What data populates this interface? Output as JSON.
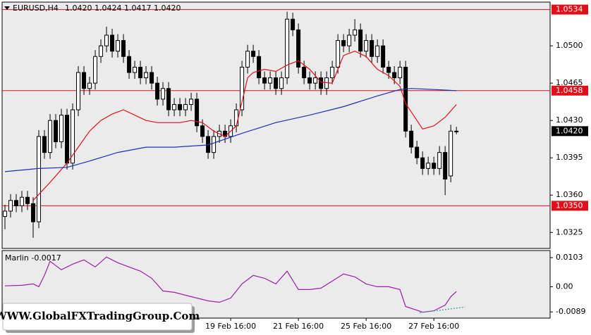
{
  "chart_data": {
    "type": "candlestick",
    "title": "EURUSD,H4",
    "header_ohlc": [
      {
        "value": 1.042,
        "label": "1.0420"
      },
      1.0424,
      1.0417,
      {
        "value": 1.042,
        "label": "1.0420"
      }
    ],
    "open": [
      1.034,
      1.0345,
      1.0355,
      1.035,
      1.0358,
      1.0352,
      1.0335,
      1.0415,
      1.04,
      1.043,
      1.041,
      1.0435,
      1.039,
      1.044,
      1.0475,
      1.046,
      1.0465,
      1.049,
      1.05,
      1.051,
      1.0495,
      1.0505,
      1.049,
      1.0475,
      1.048,
      1.047,
      1.0475,
      1.0465,
      1.045,
      1.046,
      1.044,
      1.0445,
      1.044,
      1.0445,
      1.045,
      1.0425,
      1.0415,
      1.04,
      1.0415,
      1.042,
      1.0415,
      1.0425,
      1.044,
      1.048,
      1.0495,
      1.049,
      1.047,
      1.0465,
      1.047,
      1.046,
      1.047,
      1.0525,
      1.0515,
      1.048,
      1.047,
      1.0465,
      1.047,
      1.046,
      1.047,
      1.048,
      1.0505,
      1.05,
      1.051,
      1.0515,
      1.0495,
      1.0505,
      1.049,
      1.05,
      1.048,
      1.0475,
      1.047,
      1.048,
      1.042,
      1.0405,
      1.0395,
      1.0385,
      1.039,
      1.0385,
      1.04,
      1.0378,
      1.042
    ],
    "high": [
      1.0351,
      1.0361,
      1.0361,
      1.0364,
      1.0364,
      1.0358,
      1.0421,
      1.0421,
      1.0436,
      1.0436,
      1.0441,
      1.0441,
      1.0446,
      1.0481,
      1.0481,
      1.0471,
      1.0496,
      1.0506,
      1.0518,
      1.0516,
      1.0511,
      1.0511,
      1.0496,
      1.0486,
      1.0486,
      1.0481,
      1.0481,
      1.0471,
      1.0466,
      1.0466,
      1.0451,
      1.0451,
      1.0451,
      1.0456,
      1.0456,
      1.0431,
      1.0421,
      1.0421,
      1.0426,
      1.0426,
      1.0431,
      1.0446,
      1.0486,
      1.0501,
      1.0501,
      1.0496,
      1.0476,
      1.0476,
      1.0476,
      1.0476,
      1.0532,
      1.0531,
      1.0521,
      1.0486,
      1.0476,
      1.0476,
      1.0476,
      1.0476,
      1.0486,
      1.0511,
      1.0511,
      1.0516,
      1.0525,
      1.0521,
      1.0511,
      1.0511,
      1.0506,
      1.0506,
      1.0486,
      1.0481,
      1.0486,
      1.0486,
      1.0426,
      1.0411,
      1.0401,
      1.0396,
      1.0396,
      1.0406,
      1.0406,
      1.0426,
      1.0424
    ],
    "low": [
      1.0328,
      1.0339,
      1.0344,
      1.0344,
      1.0346,
      1.032,
      1.0329,
      1.0394,
      1.0394,
      1.0404,
      1.0404,
      1.0384,
      1.0384,
      1.0434,
      1.0454,
      1.0454,
      1.0459,
      1.0484,
      1.0494,
      1.0489,
      1.0489,
      1.0484,
      1.0469,
      1.0469,
      1.0464,
      1.0464,
      1.0459,
      1.0444,
      1.0444,
      1.0434,
      1.0434,
      1.0434,
      1.0434,
      1.0439,
      1.0419,
      1.0409,
      1.0394,
      1.0394,
      1.0409,
      1.0409,
      1.0409,
      1.0419,
      1.0434,
      1.0474,
      1.0484,
      1.0464,
      1.0459,
      1.0459,
      1.0454,
      1.0454,
      1.0464,
      1.0509,
      1.0474,
      1.0464,
      1.0459,
      1.0459,
      1.0454,
      1.0454,
      1.0464,
      1.0474,
      1.0494,
      1.0494,
      1.0504,
      1.0489,
      1.0489,
      1.0484,
      1.0484,
      1.0474,
      1.0469,
      1.0464,
      1.0464,
      1.0414,
      1.0399,
      1.0389,
      1.0379,
      1.0379,
      1.0379,
      1.0379,
      1.036,
      1.0372,
      1.0417
    ],
    "close": [
      1.0345,
      1.0355,
      1.035,
      1.0358,
      1.0352,
      1.0335,
      1.0415,
      1.04,
      1.043,
      1.041,
      1.0435,
      1.039,
      1.044,
      1.0475,
      1.046,
      1.0465,
      1.049,
      1.05,
      1.051,
      1.0495,
      1.0505,
      1.049,
      1.0475,
      1.048,
      1.047,
      1.0475,
      1.0465,
      1.045,
      1.046,
      1.044,
      1.0445,
      1.044,
      1.0445,
      1.045,
      1.0425,
      1.0415,
      1.04,
      1.0415,
      1.042,
      1.0415,
      1.0425,
      1.044,
      1.048,
      1.0495,
      1.049,
      1.047,
      1.0465,
      1.047,
      1.046,
      1.047,
      1.0525,
      1.0515,
      1.048,
      1.047,
      1.0465,
      1.047,
      1.046,
      1.047,
      1.048,
      1.0505,
      1.05,
      1.051,
      1.0515,
      1.0495,
      1.0505,
      1.049,
      1.05,
      1.048,
      1.0475,
      1.047,
      1.048,
      1.042,
      1.0405,
      1.0395,
      1.0385,
      1.039,
      1.0385,
      1.04,
      1.0375,
      1.042,
      1.042
    ],
    "series": [
      {
        "color": "#e0101a",
        "x": [
          5,
          8,
          11,
          13,
          15,
          17,
          19,
          21,
          23,
          25,
          27,
          29,
          31,
          33,
          35,
          37,
          39,
          41,
          43,
          44,
          46,
          48,
          50,
          52,
          54,
          56,
          58,
          60,
          62,
          64,
          66,
          68,
          70,
          71,
          73,
          74,
          76,
          78,
          80
        ],
        "values": [
          1.0355,
          1.0372,
          1.039,
          1.0405,
          1.042,
          1.043,
          1.0436,
          1.044,
          1.0435,
          1.043,
          1.0428,
          1.0428,
          1.0428,
          1.043,
          1.0428,
          1.042,
          1.0415,
          1.0425,
          1.047,
          1.0475,
          1.0478,
          1.0476,
          1.0482,
          1.0486,
          1.0478,
          1.0466,
          1.0465,
          1.0491,
          1.0495,
          1.049,
          1.0478,
          1.0472,
          1.0462,
          1.0446,
          1.043,
          1.0422,
          1.0425,
          1.0433,
          1.0445
        ]
      },
      {
        "color": "#1c2fb4",
        "x": [
          0,
          6,
          11,
          15,
          20,
          25,
          30,
          36,
          42,
          48,
          54,
          60,
          66,
          70,
          72,
          76,
          80
        ],
        "values": [
          1.0382,
          1.0385,
          1.0386,
          1.0392,
          1.04,
          1.0405,
          1.0405,
          1.0407,
          1.0418,
          1.0428,
          1.0435,
          1.0443,
          1.0453,
          1.0459,
          1.046,
          1.0459,
          1.0458
        ]
      }
    ],
    "levels": [
      1.0534,
      1.0458,
      {
        "value": 1.035,
        "label": "1.0350"
      }
    ],
    "level_color": "#e0101a",
    "last_price": {
      "value": 1.042,
      "label": "1.0420"
    },
    "xlim": [
      -0.5,
      96.6
    ],
    "xticks": [
      {
        "value": 40,
        "label": "19 Feb 16:00"
      },
      {
        "value": 52,
        "label": "21 Feb 16:00"
      },
      {
        "value": 64,
        "label": "25 Feb 16:00"
      },
      {
        "value": 76,
        "label": "27 Feb 16:00"
      }
    ],
    "ylim": [
      1.031,
      1.0541
    ],
    "yticks": [
      {
        "value": 1.05,
        "label": "1.0500"
      },
      1.0465,
      {
        "value": 1.043,
        "label": "1.0430"
      },
      1.0395,
      {
        "value": 1.036,
        "label": "1.0360"
      },
      1.0325
    ],
    "indicator": {
      "name": "Marlin",
      "value": -0.0017,
      "color": "#9b1fa8",
      "x": [
        0,
        3,
        5,
        6,
        7,
        8,
        10,
        12,
        14,
        16,
        18,
        20,
        22,
        24,
        26,
        28,
        30,
        32,
        34,
        36,
        38,
        40,
        42,
        44,
        46,
        48,
        50,
        52,
        54,
        56,
        58,
        60,
        62,
        64,
        66,
        68,
        70,
        71,
        73,
        74,
        76,
        77,
        78,
        79,
        80
      ],
      "values": [
        0.0003,
        0.0005,
        0.001,
        0,
        0.004,
        0.009,
        0.006,
        0.008,
        0.0095,
        0.007,
        0.0105,
        0.0085,
        0.007,
        0.0055,
        0.003,
        -0.0015,
        -0.002,
        -0.003,
        -0.004,
        -0.005,
        -0.0055,
        -0.004,
        0.001,
        0.004,
        0.003,
        0.001,
        0.0055,
        -0.001,
        -0.001,
        -0.0005,
        0.002,
        0.0045,
        0.0035,
        0.001,
        0,
        0,
        -0.001,
        -0.007,
        -0.0083,
        -0.009,
        -0.0085,
        -0.0075,
        -0.0065,
        -0.0035,
        -0.0017
      ],
      "trendline": {
        "color": "#3aa0a8",
        "x": [
          73.5,
          81.5
        ],
        "values": [
          -0.0092,
          -0.0072
        ]
      },
      "ylim": [
        -0.0111,
        0.0128
      ],
      "yticks": [
        0.0103,
        {
          "value": 0,
          "label": "0.00"
        },
        -0.0089
      ]
    },
    "watermark": "WWW.GlobalFXTradingGroup.Com"
  }
}
